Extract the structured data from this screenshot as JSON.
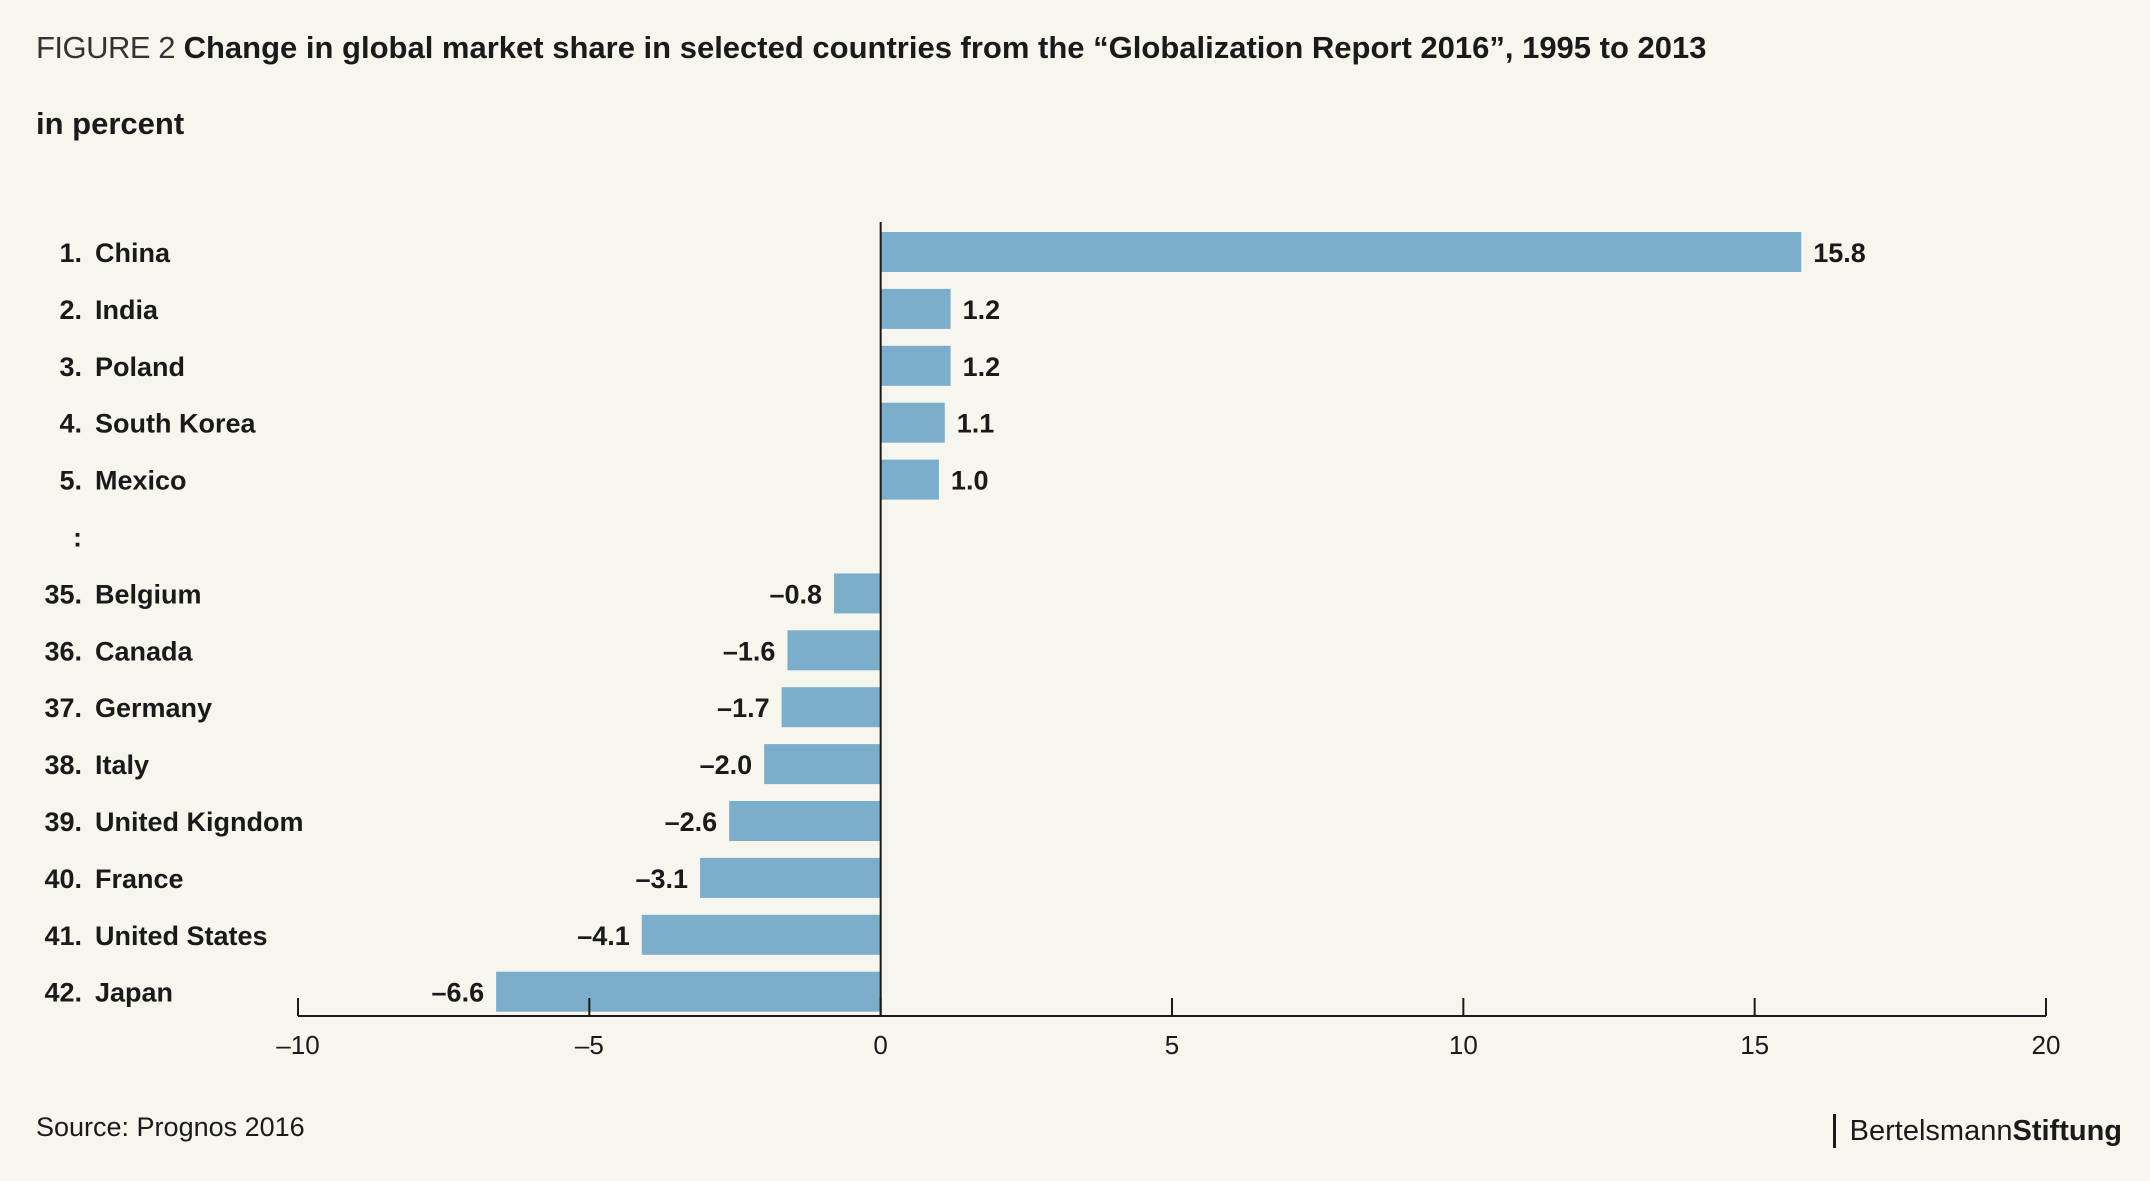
{
  "figure_label": "FIGURE 2",
  "figure_title": "Change in global market share in selected countries from the “Globalization Report 2016”, 1995 to 2013",
  "unit": "in percent",
  "source": "Source: Prognos 2016",
  "brand": {
    "part1": "Bertelsmann",
    "part2": "Stiftung"
  },
  "colors": {
    "bar": "#7aaecb",
    "background": "#f7f6ee",
    "text": "#1a1a1a"
  },
  "chart_data": {
    "type": "bar",
    "orientation": "horizontal",
    "xlim": [
      -10,
      20
    ],
    "xticks": [
      -10,
      -5,
      0,
      5,
      10,
      15,
      20
    ],
    "xtick_labels": [
      "–10",
      "–5",
      "0",
      "5",
      "10",
      "15",
      "20"
    ],
    "grid": false,
    "rows": [
      {
        "rank": "1.",
        "country": "China",
        "value": 15.8,
        "label": "15.8"
      },
      {
        "rank": "2.",
        "country": "India",
        "value": 1.2,
        "label": "1.2"
      },
      {
        "rank": "3.",
        "country": "Poland",
        "value": 1.2,
        "label": "1.2"
      },
      {
        "rank": "4.",
        "country": "South Korea",
        "value": 1.1,
        "label": "1.1"
      },
      {
        "rank": "5.",
        "country": "Mexico",
        "value": 1.0,
        "label": "1.0"
      },
      {
        "rank": ":",
        "country": "",
        "value": null,
        "label": ""
      },
      {
        "rank": "35.",
        "country": "Belgium",
        "value": -0.8,
        "label": "–0.8"
      },
      {
        "rank": "36.",
        "country": "Canada",
        "value": -1.6,
        "label": "–1.6"
      },
      {
        "rank": "37.",
        "country": "Germany",
        "value": -1.7,
        "label": "–1.7"
      },
      {
        "rank": "38.",
        "country": "Italy",
        "value": -2.0,
        "label": "–2.0"
      },
      {
        "rank": "39.",
        "country": "United Kigndom",
        "value": -2.6,
        "label": "–2.6"
      },
      {
        "rank": "40.",
        "country": "France",
        "value": -3.1,
        "label": "–3.1"
      },
      {
        "rank": "41.",
        "country": "United States",
        "value": -4.1,
        "label": "–4.1"
      },
      {
        "rank": "42.",
        "country": "Japan",
        "value": -6.6,
        "label": "–6.6"
      }
    ]
  }
}
